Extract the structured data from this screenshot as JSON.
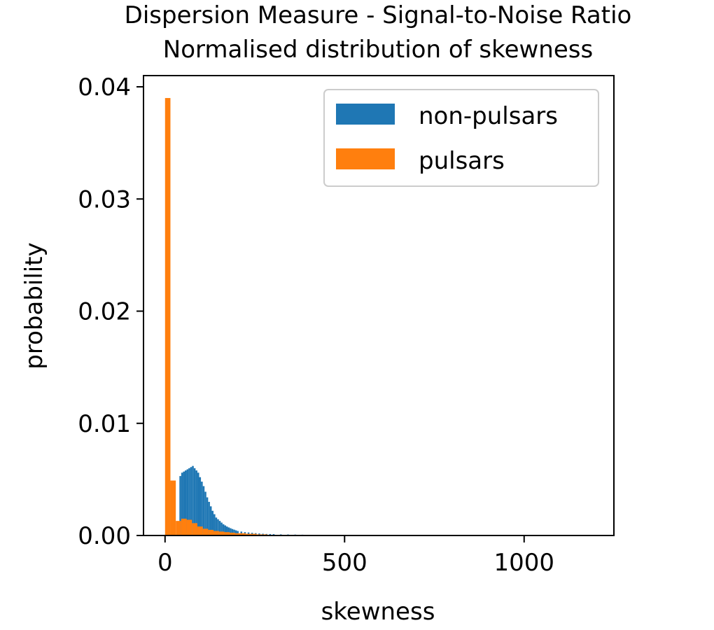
{
  "chart_data": {
    "type": "bar",
    "title": "Dispersion Measure - Signal-to-Noise Ratio",
    "subtitle": "Normalised distribution of skewness",
    "xlabel": "skewness",
    "ylabel": "probability",
    "xlim": [
      -60,
      1250
    ],
    "ylim": [
      0,
      0.041
    ],
    "xticks": [
      0,
      500,
      1000
    ],
    "xtick_labels": [
      "0",
      "500",
      "1000"
    ],
    "yticks": [
      0,
      0.01,
      0.02,
      0.03,
      0.04
    ],
    "ytick_labels": [
      "0.00",
      "0.01",
      "0.02",
      "0.03",
      "0.04"
    ],
    "grid": false,
    "legend_position": "top-right",
    "series": [
      {
        "name": "non-pulsars",
        "color": "#1f77b4",
        "bin_width": 5,
        "bins": [
          [
            40,
            0.0053
          ],
          [
            45,
            0.0056
          ],
          [
            50,
            0.0057
          ],
          [
            55,
            0.0058
          ],
          [
            60,
            0.0059
          ],
          [
            65,
            0.006
          ],
          [
            70,
            0.0061
          ],
          [
            75,
            0.0062
          ],
          [
            80,
            0.006
          ],
          [
            85,
            0.0058
          ],
          [
            90,
            0.0056
          ],
          [
            95,
            0.0052
          ],
          [
            100,
            0.0048
          ],
          [
            105,
            0.0044
          ],
          [
            110,
            0.0039
          ],
          [
            115,
            0.0034
          ],
          [
            120,
            0.003
          ],
          [
            125,
            0.0026
          ],
          [
            130,
            0.0022
          ],
          [
            135,
            0.0019
          ],
          [
            140,
            0.0016
          ],
          [
            145,
            0.00145
          ],
          [
            150,
            0.0013
          ],
          [
            155,
            0.00115
          ],
          [
            160,
            0.001
          ],
          [
            165,
            0.0009
          ],
          [
            170,
            0.0008
          ],
          [
            175,
            0.00072
          ],
          [
            180,
            0.00065
          ],
          [
            185,
            0.00058
          ],
          [
            190,
            0.00052
          ],
          [
            195,
            0.00046
          ],
          [
            200,
            0.0004
          ],
          [
            210,
            0.00035
          ],
          [
            220,
            0.0003
          ],
          [
            230,
            0.00027
          ],
          [
            240,
            0.00024
          ],
          [
            250,
            0.00021
          ],
          [
            260,
            0.00018
          ],
          [
            270,
            0.00016
          ],
          [
            280,
            0.00014
          ],
          [
            290,
            0.00013
          ],
          [
            300,
            0.00012
          ],
          [
            320,
            0.0001
          ],
          [
            340,
            9e-05
          ],
          [
            360,
            8e-05
          ],
          [
            380,
            7e-05
          ],
          [
            400,
            6e-05
          ],
          [
            420,
            5e-05
          ],
          [
            440,
            4e-05
          ],
          [
            460,
            3e-05
          ],
          [
            480,
            3e-05
          ],
          [
            500,
            2e-05
          ],
          [
            520,
            2e-05
          ],
          [
            540,
            1e-05
          ],
          [
            560,
            1e-05
          ]
        ]
      },
      {
        "name": "pulsars",
        "color": "#ff7f0e",
        "bin_width": 15,
        "bins": [
          [
            0,
            0.039
          ],
          [
            15,
            0.0049
          ],
          [
            30,
            0.0013
          ],
          [
            45,
            0.0015
          ],
          [
            60,
            0.0014
          ],
          [
            75,
            0.0011
          ],
          [
            90,
            0.0008
          ],
          [
            105,
            0.0006
          ],
          [
            120,
            0.0005
          ],
          [
            135,
            0.0004
          ],
          [
            150,
            0.00035
          ],
          [
            165,
            0.0003
          ],
          [
            180,
            0.00025
          ],
          [
            195,
            0.0002
          ],
          [
            210,
            0.0002
          ],
          [
            225,
            0.00015
          ],
          [
            240,
            0.00015
          ],
          [
            255,
            0.0001
          ],
          [
            270,
            0.0001
          ]
        ]
      }
    ]
  }
}
